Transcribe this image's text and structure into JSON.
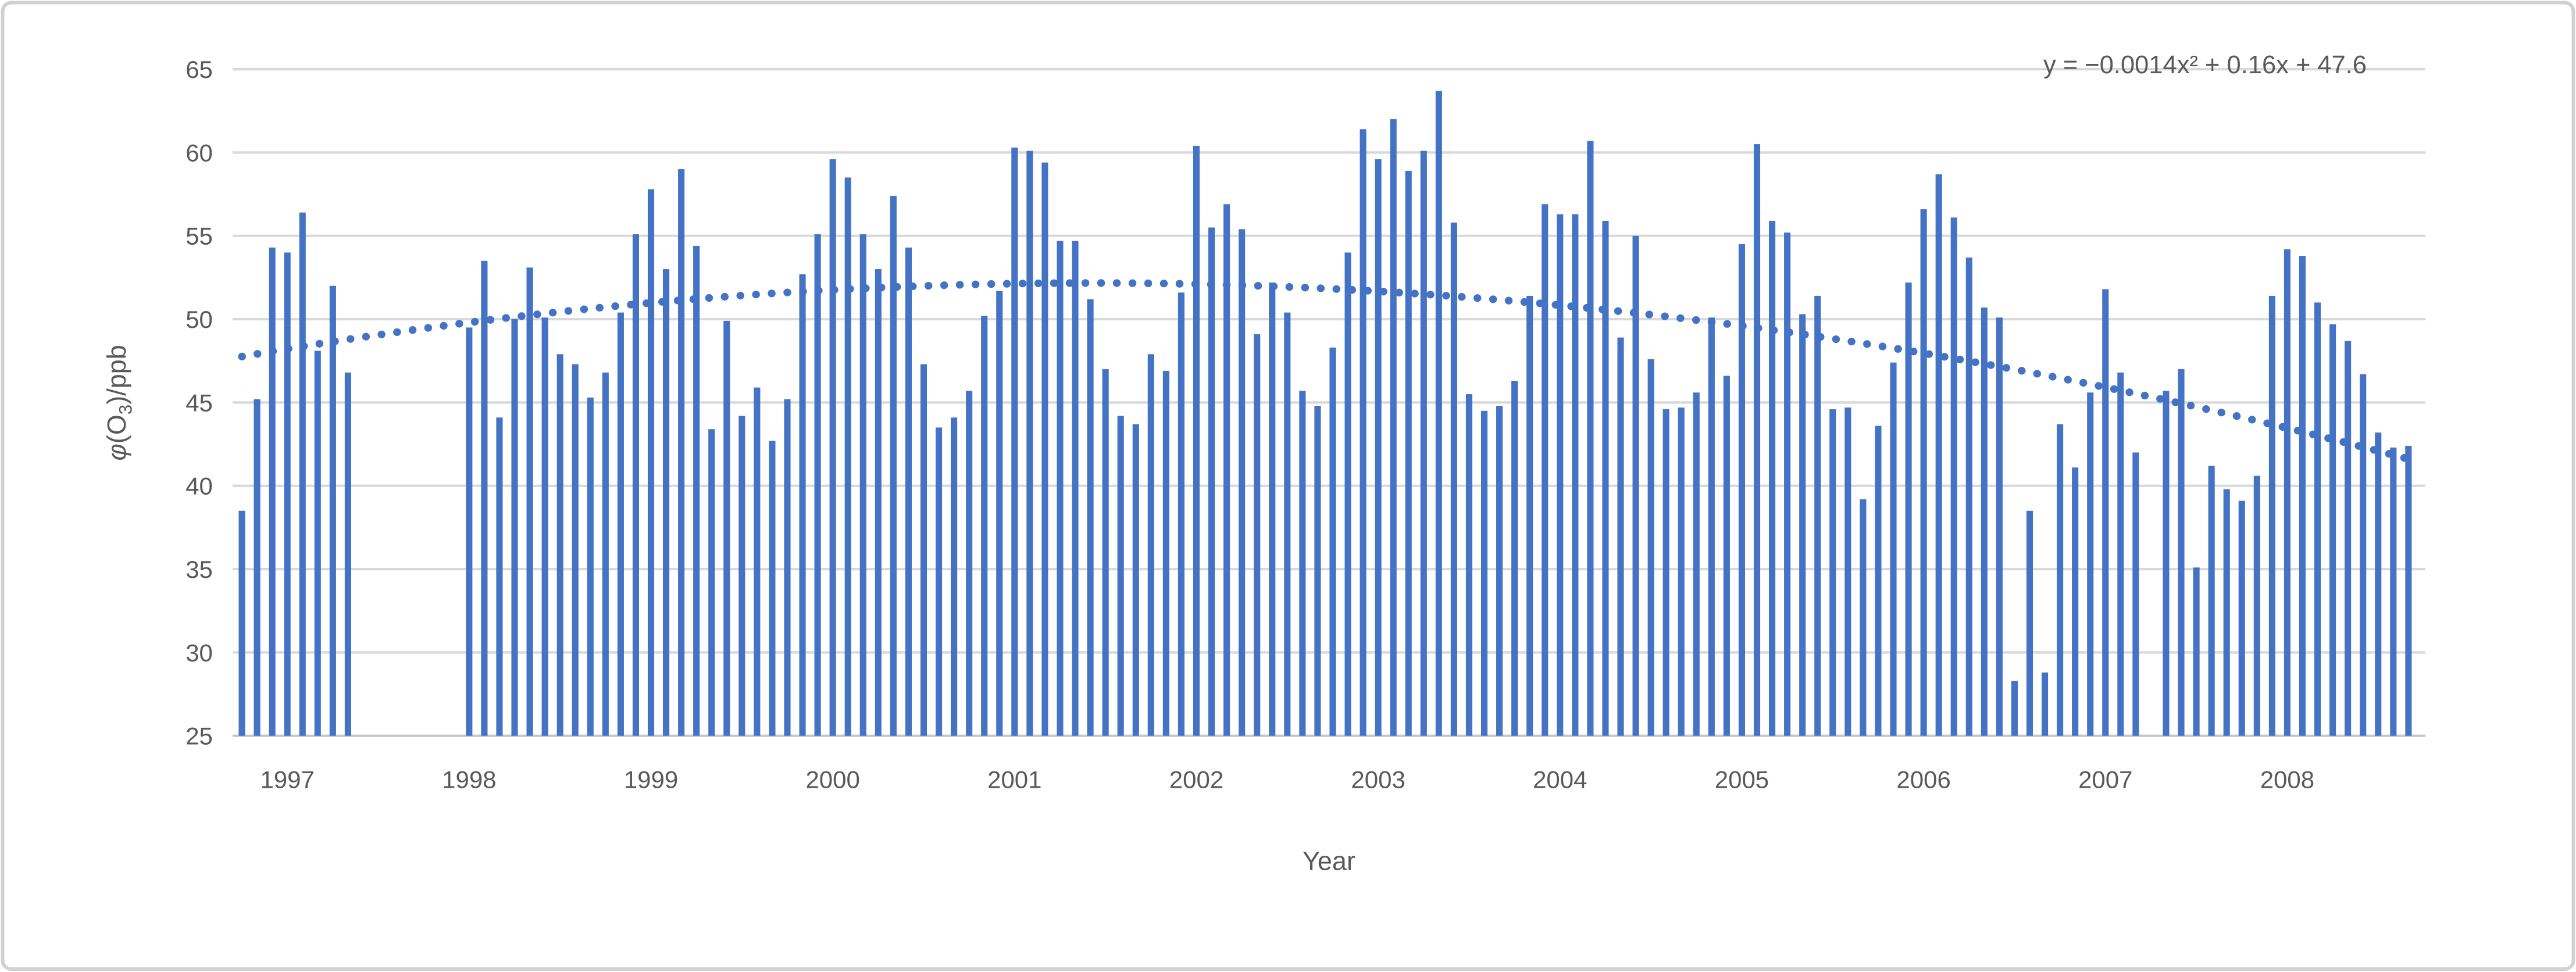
{
  "chart_data": {
    "type": "bar",
    "title": "",
    "ylabel": "φ(O₃)/ppb",
    "ylabel_parts": {
      "italic": "φ",
      "pre": "(O",
      "sub": "3",
      "post": ")/ppb"
    },
    "xlabel": "Year",
    "ylim": [
      25,
      65
    ],
    "yticks": [
      25,
      30,
      35,
      40,
      45,
      50,
      55,
      60,
      65
    ],
    "grid": "horizontal",
    "legend": "none",
    "bar_color": "#4472C4",
    "trendline_color": "#4472C4",
    "gridline_color": "#D9D9D9",
    "axisline_color": "#C6C6C6",
    "text_color": "#595959",
    "x_start": "1996-10",
    "x_end": "2008-09",
    "year_tick_labels": [
      "1997",
      "1998",
      "1999",
      "2000",
      "2001",
      "2002",
      "2003",
      "2004",
      "2005",
      "2006",
      "2007",
      "2008"
    ],
    "series_by_year": [
      {
        "year": 1996,
        "first_month": 10,
        "values": [
          38.5,
          45.2,
          54.3
        ]
      },
      {
        "year": 1997,
        "first_month": 1,
        "values": [
          54.0,
          56.4,
          48.1,
          52.0,
          46.8,
          null,
          null,
          null,
          null,
          null,
          null,
          null
        ]
      },
      {
        "year": 1998,
        "first_month": 1,
        "values": [
          49.5,
          53.5,
          44.1,
          50.0,
          53.1,
          50.1,
          47.9,
          47.3,
          45.3,
          46.8,
          50.4,
          55.1
        ]
      },
      {
        "year": 1999,
        "first_month": 1,
        "values": [
          57.8,
          53.0,
          59.0,
          54.4,
          43.4,
          49.9,
          44.2,
          45.9,
          42.7,
          45.2,
          52.7,
          55.1
        ]
      },
      {
        "year": 2000,
        "first_month": 1,
        "values": [
          59.6,
          58.5,
          55.1,
          53.0,
          57.4,
          54.3,
          47.3,
          43.5,
          44.1,
          45.7,
          50.2,
          51.7
        ]
      },
      {
        "year": 2001,
        "first_month": 1,
        "values": [
          60.3,
          60.1,
          59.4,
          54.7,
          54.7,
          51.2,
          47.0,
          44.2,
          43.7,
          47.9,
          46.9,
          51.6
        ]
      },
      {
        "year": 2002,
        "first_month": 1,
        "values": [
          60.4,
          55.5,
          56.9,
          55.4,
          49.1,
          52.2,
          50.4,
          45.7,
          44.8,
          48.3,
          54.0,
          61.4
        ]
      },
      {
        "year": 2003,
        "first_month": 1,
        "values": [
          59.6,
          62.0,
          58.9,
          60.1,
          63.7,
          55.8,
          45.5,
          44.5,
          44.8,
          46.3,
          51.4,
          56.9
        ]
      },
      {
        "year": 2004,
        "first_month": 1,
        "values": [
          56.3,
          56.3,
          60.7,
          55.9,
          48.9,
          55.0,
          47.6,
          44.6,
          44.7,
          45.6,
          50.1,
          46.6
        ]
      },
      {
        "year": 2005,
        "first_month": 1,
        "values": [
          54.5,
          60.5,
          55.9,
          55.2,
          50.3,
          51.4,
          44.6,
          44.7,
          39.2,
          43.6,
          47.4,
          52.2
        ]
      },
      {
        "year": 2006,
        "first_month": 1,
        "values": [
          56.6,
          58.7,
          56.1,
          53.7,
          50.7,
          50.1,
          28.3,
          38.5,
          28.8,
          43.7,
          41.1,
          45.6
        ]
      },
      {
        "year": 2007,
        "first_month": 1,
        "values": [
          51.8,
          46.8,
          42.0,
          null,
          45.7,
          47.0,
          35.1,
          41.2,
          39.8,
          39.1,
          40.6,
          51.4
        ]
      },
      {
        "year": 2008,
        "first_month": 1,
        "values": [
          54.2,
          53.8,
          51.0,
          49.7,
          48.7,
          46.7,
          43.2,
          42.3,
          42.4
        ]
      }
    ],
    "trendline": {
      "equation_label": "y = −0.0014x² + 0.16x + 47.6",
      "a": -0.0014,
      "b": 0.16,
      "c": 47.6,
      "x_domain_slots": [
        1,
        144
      ],
      "style": "round-dot"
    }
  }
}
